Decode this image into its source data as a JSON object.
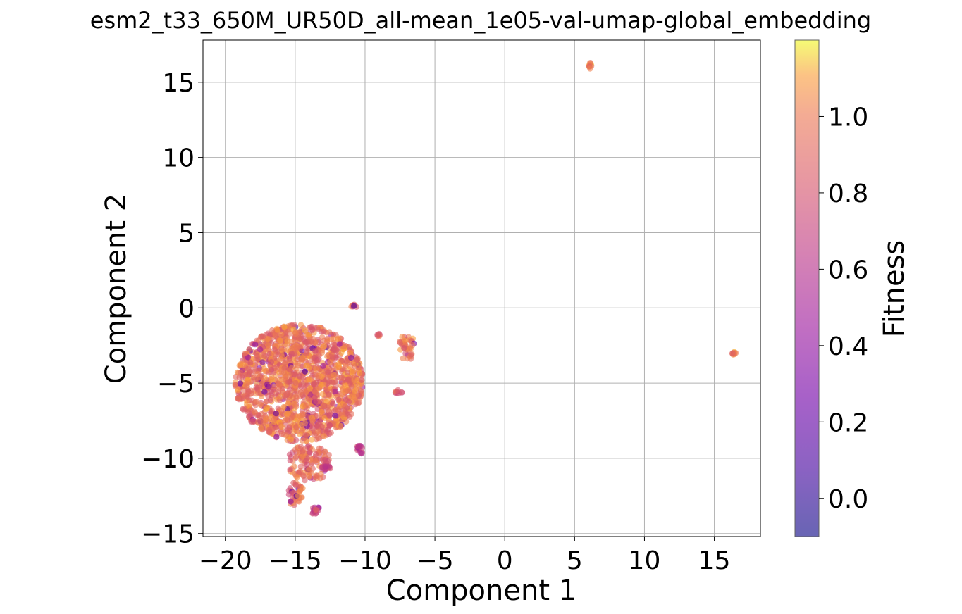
{
  "chart_data": {
    "type": "scatter",
    "title": "esm2_t33_650M_UR50D_all-mean_1e05-val-umap-global_embedding",
    "xlabel": "Component 1",
    "ylabel": "Component 2",
    "xlim": [
      -21.6,
      18.3
    ],
    "ylim": [
      -15.2,
      17.8
    ],
    "xticks": [
      -20,
      -15,
      -10,
      -5,
      0,
      5,
      10,
      15
    ],
    "yticks": [
      -15,
      -10,
      -5,
      0,
      5,
      10,
      15
    ],
    "xtick_labels": [
      "−20",
      "−15",
      "−10",
      "−5",
      "0",
      "5",
      "10",
      "15"
    ],
    "ytick_labels": [
      "−15",
      "−10",
      "−5",
      "0",
      "5",
      "10",
      "15"
    ],
    "grid": true,
    "colormap": "plasma",
    "colorbar": {
      "label": "Fitness",
      "range": [
        -0.1,
        1.2
      ],
      "ticks": [
        0.0,
        0.2,
        0.4,
        0.6,
        0.8,
        1.0
      ],
      "tick_labels": [
        "0.0",
        "0.2",
        "0.4",
        "0.6",
        "0.8",
        "1.0"
      ]
    },
    "clusters": [
      {
        "cx": -14.7,
        "cy": -5.0,
        "rx": 4.6,
        "ry": 3.9,
        "count": 1500,
        "fitness_mean": 0.95
      },
      {
        "cx": -14.0,
        "cy": -10.3,
        "rx": 1.6,
        "ry": 1.2,
        "count": 120,
        "fitness_mean": 0.9
      },
      {
        "cx": -15.0,
        "cy": -12.3,
        "rx": 0.6,
        "ry": 0.9,
        "count": 40,
        "fitness_mean": 0.9
      },
      {
        "cx": -13.6,
        "cy": -13.4,
        "rx": 0.4,
        "ry": 0.3,
        "count": 15,
        "fitness_mean": 0.75
      },
      {
        "cx": -12.8,
        "cy": -10.6,
        "rx": 0.3,
        "ry": 0.2,
        "count": 12,
        "fitness_mean": 0.75
      },
      {
        "cx": -10.3,
        "cy": -9.4,
        "rx": 0.4,
        "ry": 0.3,
        "count": 14,
        "fitness_mean": 0.65
      },
      {
        "cx": -7.0,
        "cy": -2.6,
        "rx": 0.6,
        "ry": 0.9,
        "count": 40,
        "fitness_mean": 0.95
      },
      {
        "cx": -7.6,
        "cy": -5.6,
        "rx": 0.25,
        "ry": 0.15,
        "count": 10,
        "fitness_mean": 0.85
      },
      {
        "cx": -9.0,
        "cy": -1.8,
        "rx": 0.12,
        "ry": 0.12,
        "count": 6,
        "fitness_mean": 0.9
      },
      {
        "cx": -10.8,
        "cy": 0.1,
        "rx": 0.2,
        "ry": 0.12,
        "count": 8,
        "fitness_mean": 0.9
      },
      {
        "cx": 6.1,
        "cy": 16.1,
        "rx": 0.15,
        "ry": 0.2,
        "count": 10,
        "fitness_mean": 1.0
      },
      {
        "cx": 16.4,
        "cy": -3.0,
        "rx": 0.15,
        "ry": 0.12,
        "count": 10,
        "fitness_mean": 1.0
      }
    ]
  }
}
